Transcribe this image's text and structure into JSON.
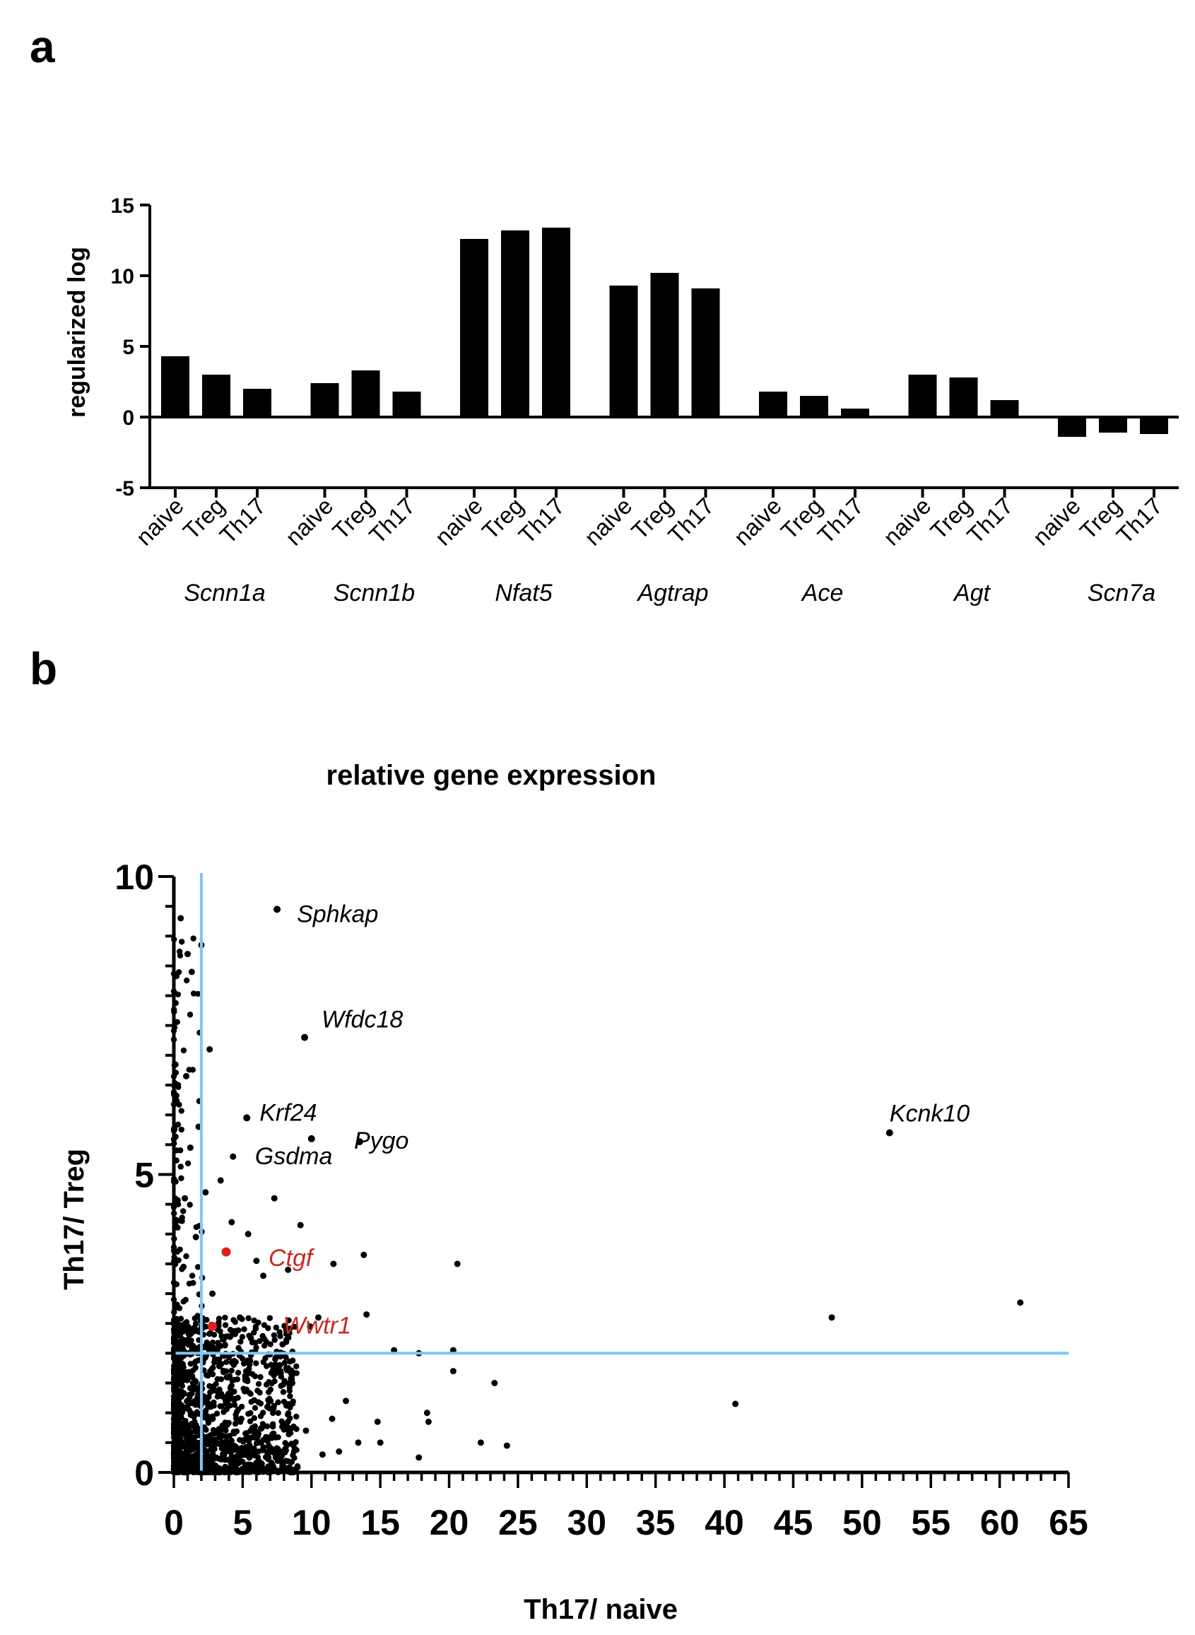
{
  "chart_data": [
    {
      "panel": "a",
      "type": "bar",
      "ylabel": "regularized log",
      "ylim": [
        -5,
        15
      ],
      "yticks": [
        15,
        10,
        5,
        0,
        -5
      ],
      "categories": [
        "naive",
        "Treg",
        "Th17"
      ],
      "groups": [
        {
          "gene": "Scnn1a",
          "values": [
            4.3,
            3.0,
            2.0
          ]
        },
        {
          "gene": "Scnn1b",
          "values": [
            2.4,
            3.3,
            1.8
          ]
        },
        {
          "gene": "Nfat5",
          "values": [
            12.6,
            13.2,
            13.4
          ]
        },
        {
          "gene": "Agtrap",
          "values": [
            9.3,
            10.2,
            9.1
          ]
        },
        {
          "gene": "Ace",
          "values": [
            1.8,
            1.5,
            0.6
          ]
        },
        {
          "gene": "Agt",
          "values": [
            3.0,
            2.8,
            1.2
          ]
        },
        {
          "gene": "Scn7a",
          "values": [
            -1.4,
            -1.1,
            -1.2
          ]
        }
      ]
    },
    {
      "panel": "b",
      "type": "scatter",
      "title": "relative gene expression",
      "xlabel": "Th17/ naive",
      "ylabel": "Th17/ Treg",
      "xlim": [
        0,
        65
      ],
      "ylim": [
        0,
        10
      ],
      "xticks": [
        0,
        5,
        10,
        15,
        20,
        25,
        30,
        35,
        40,
        45,
        50,
        55,
        60,
        65
      ],
      "yticks": [
        0,
        5,
        10
      ],
      "threshold_x": 2,
      "threshold_y": 2,
      "threshold_color": "#7ec8f0",
      "highlight_color": "#e0201a",
      "labeled_points": [
        {
          "label": "Sphkap",
          "x": 7.5,
          "y": 9.45,
          "highlight": false
        },
        {
          "label": "Wfdc18",
          "x": 9.5,
          "y": 7.3,
          "highlight": false
        },
        {
          "label": "Krf24",
          "x": 5.3,
          "y": 5.95,
          "highlight": false
        },
        {
          "label": "Gsdma",
          "x": 10.0,
          "y": 5.6,
          "highlight": false
        },
        {
          "label": "Pygo",
          "x": 13.5,
          "y": 5.55,
          "highlight": false
        },
        {
          "label": "Kcnk10",
          "x": 52.0,
          "y": 5.7,
          "highlight": false
        },
        {
          "label": "Ctgf",
          "x": 3.8,
          "y": 3.7,
          "highlight": true
        },
        {
          "label": "Wwtr1",
          "x": 2.8,
          "y": 2.45,
          "highlight": true
        }
      ],
      "points": [
        [
          61.5,
          2.85
        ],
        [
          47.8,
          2.6
        ],
        [
          40.8,
          1.15
        ],
        [
          52.0,
          5.7
        ],
        [
          20.6,
          3.5
        ],
        [
          20.3,
          2.05
        ],
        [
          20.3,
          1.7
        ],
        [
          23.3,
          1.5
        ],
        [
          22.3,
          0.5
        ],
        [
          24.2,
          0.45
        ],
        [
          16.0,
          2.05
        ],
        [
          17.8,
          2.0
        ],
        [
          18.4,
          1.0
        ],
        [
          18.5,
          0.85
        ],
        [
          17.8,
          0.25
        ],
        [
          13.8,
          3.65
        ],
        [
          14.0,
          2.65
        ],
        [
          11.6,
          3.5
        ],
        [
          10.5,
          2.6
        ],
        [
          9.2,
          4.15
        ],
        [
          8.3,
          3.4
        ],
        [
          7.3,
          4.6
        ],
        [
          6.5,
          3.3
        ],
        [
          6.0,
          3.55
        ],
        [
          5.4,
          4.0
        ],
        [
          4.2,
          4.2
        ],
        [
          4.3,
          5.3
        ],
        [
          3.4,
          4.9
        ],
        [
          2.0,
          8.85
        ],
        [
          2.6,
          7.1
        ],
        [
          1.3,
          8.4
        ],
        [
          1.0,
          8.7
        ],
        [
          0.5,
          9.3
        ],
        [
          0.3,
          6.5
        ],
        [
          0.9,
          6.65
        ],
        [
          1.8,
          5.8
        ],
        [
          1.2,
          5.45
        ],
        [
          0.8,
          4.6
        ],
        [
          2.3,
          4.7
        ],
        [
          1.6,
          3.95
        ],
        [
          0.7,
          3.45
        ],
        [
          2.8,
          3.0
        ],
        [
          3.2,
          2.4
        ],
        [
          4.8,
          2.6
        ],
        [
          5.6,
          2.25
        ],
        [
          7.9,
          2.15
        ],
        [
          9.9,
          2.45
        ],
        [
          12.5,
          1.2
        ],
        [
          14.8,
          0.85
        ],
        [
          13.4,
          0.5
        ],
        [
          12.0,
          0.35
        ],
        [
          15.0,
          0.5
        ],
        [
          11.5,
          0.9
        ],
        [
          9.6,
          0.7
        ],
        [
          10.8,
          0.3
        ],
        [
          8.6,
          1.5
        ],
        [
          7.7,
          1.8
        ],
        [
          6.8,
          1.1
        ],
        [
          6.0,
          0.6
        ],
        [
          5.2,
          1.6
        ],
        [
          4.9,
          0.9
        ],
        [
          4.1,
          1.3
        ],
        [
          3.6,
          0.5
        ],
        [
          3.0,
          1.9
        ],
        [
          2.5,
          1.1
        ],
        [
          1.9,
          0.4
        ],
        [
          1.4,
          1.5
        ],
        [
          0.9,
          0.8
        ],
        [
          0.6,
          1.7
        ],
        [
          0.3,
          0.3
        ]
      ]
    }
  ],
  "panel_labels": {
    "a": "a",
    "b": "b"
  }
}
